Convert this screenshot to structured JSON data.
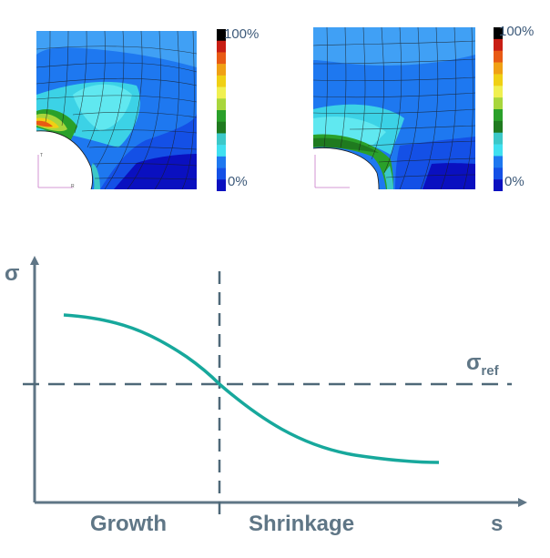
{
  "legend_left": {
    "max_label": "100%",
    "min_label": "0%"
  },
  "legend_right": {
    "max_label": "100%",
    "min_label": "0%"
  },
  "legend_colors": [
    "#000000",
    "#c81e14",
    "#e85a14",
    "#f0a014",
    "#f0d014",
    "#f0f050",
    "#a8d63c",
    "#2aa02a",
    "#1f7a1f",
    "#3cc8c8",
    "#40e0f0",
    "#1e78f0",
    "#1450e6",
    "#0a10c0"
  ],
  "fe_mini_axis_labels": {
    "vertical": "T",
    "horizontal": "R"
  },
  "diagram": {
    "y_axis_label": "σ",
    "x_axis_label": "s",
    "reference_label_main": "σ",
    "reference_label_sub": "ref",
    "region_left_label": "Growth",
    "region_right_label": "Shrinkage",
    "curve_color": "#17a89c",
    "axis_color": "#5f7686",
    "dash_color": "#4e6878"
  }
}
